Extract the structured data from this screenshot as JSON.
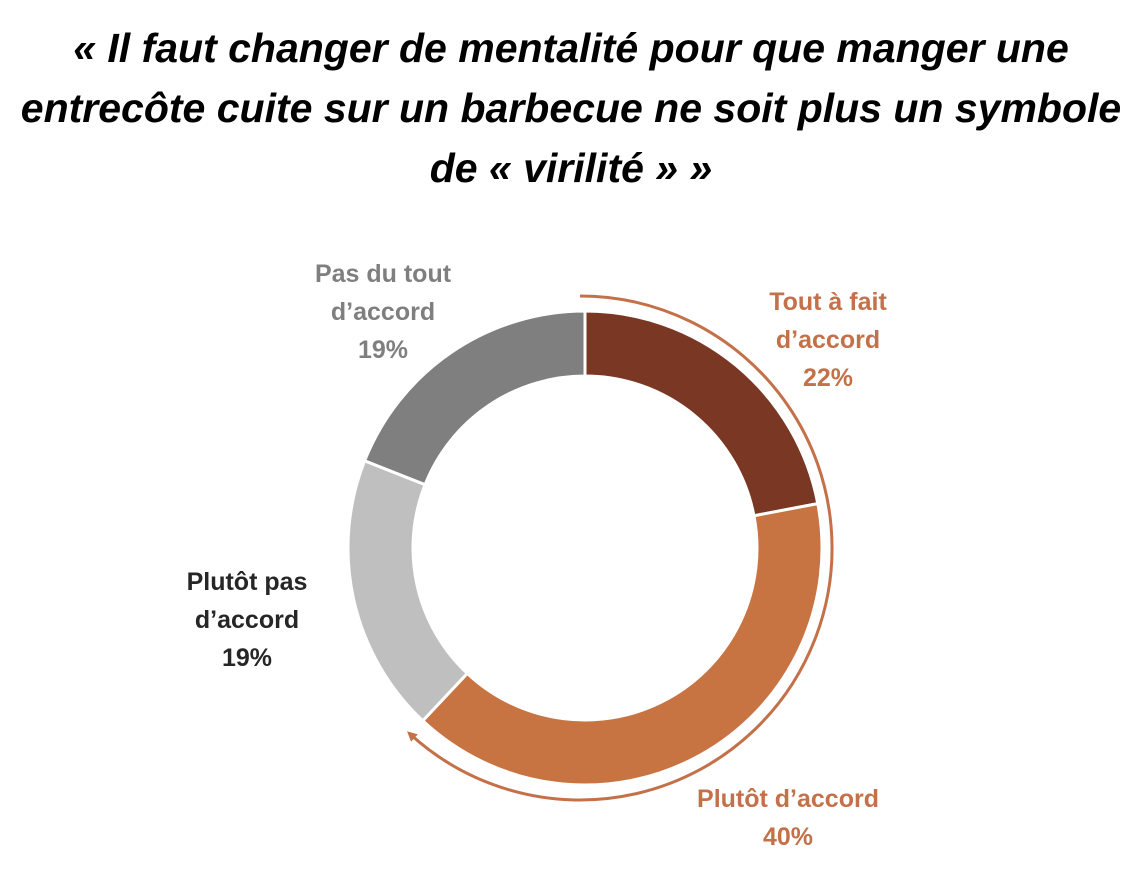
{
  "chart_data": {
    "type": "pie",
    "title": "« Il faut changer de mentalité pour que manger une entrecôte cuite sur un barbecue ne soit plus un symbole de « virilité » »",
    "categories": [
      "Tout à fait d’accord",
      "Plutôt d’accord",
      "Plutôt pas d’accord",
      "Pas du tout d’accord"
    ],
    "values": [
      22,
      40,
      19,
      19
    ],
    "value_labels": [
      "22%",
      "40%",
      "19%",
      "19%"
    ],
    "colors": [
      "#7a3723",
      "#c87442",
      "#bfbfbf",
      "#7f7f7f"
    ],
    "label_colors": [
      "#c4714a",
      "#c4714a",
      "#262626",
      "#7f7f7f"
    ]
  }
}
